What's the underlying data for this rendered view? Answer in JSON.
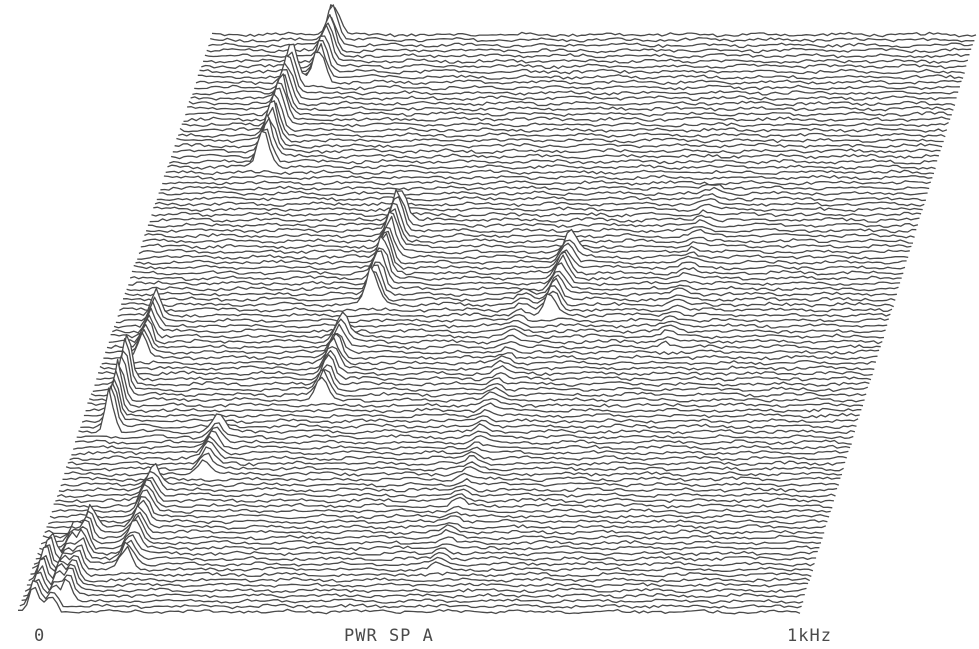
{
  "chart_data": {
    "type": "waterfall",
    "title": "",
    "xlabel": "PWR SP A",
    "ylabel": "",
    "x_tick_labels": [
      "0",
      "1kHz"
    ],
    "x_range_hz": [
      0,
      1000
    ],
    "trace_count": 110,
    "line_color": "#4a4a4a",
    "background": "#ffffff",
    "grid": false,
    "legend": "none",
    "ridges": [
      {
        "freq_hz": 20,
        "first_trace": 0,
        "last_trace": 10,
        "height": 0.7
      },
      {
        "freq_hz": 42,
        "first_trace": 0,
        "last_trace": 14,
        "height": 0.45
      },
      {
        "freq_hz": 58,
        "first_trace": 2,
        "last_trace": 16,
        "height": 0.55
      },
      {
        "freq_hz": 120,
        "first_trace": 8,
        "last_trace": 24,
        "height": 0.5
      },
      {
        "freq_hz": 40,
        "first_trace": 34,
        "last_trace": 44,
        "height": 1.0
      },
      {
        "freq_hz": 50,
        "first_trace": 48,
        "last_trace": 56,
        "height": 0.6
      },
      {
        "freq_hz": 180,
        "first_trace": 26,
        "last_trace": 34,
        "height": 0.4
      },
      {
        "freq_hz": 300,
        "first_trace": 40,
        "last_trace": 52,
        "height": 0.55
      },
      {
        "freq_hz": 325,
        "first_trace": 58,
        "last_trace": 74,
        "height": 0.85
      },
      {
        "freq_hz": 560,
        "first_trace": 56,
        "last_trace": 68,
        "height": 0.5
      },
      {
        "freq_hz": 125,
        "first_trace": 84,
        "last_trace": 100,
        "height": 0.9
      },
      {
        "freq_hz": 160,
        "first_trace": 100,
        "last_trace": 110,
        "height": 0.8
      },
      {
        "freq_hz": 520,
        "first_trace": 8,
        "last_trace": 60,
        "height": 0.15
      },
      {
        "freq_hz": 720,
        "first_trace": 50,
        "last_trace": 80,
        "height": 0.12
      }
    ]
  }
}
